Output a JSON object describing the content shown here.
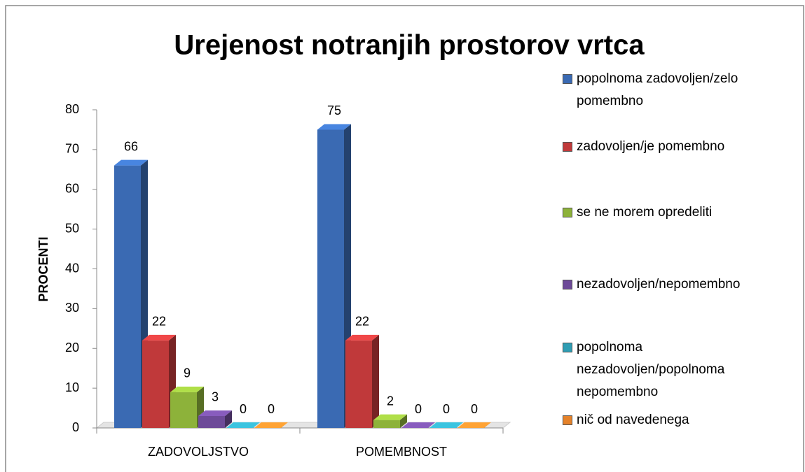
{
  "chart_data": {
    "type": "bar3d",
    "title": "Urejenost notranjih prostorov vrtca",
    "y_label": "PROCENTI",
    "categories": [
      "ZADOVOLJSTVO",
      "POMEMBNOST"
    ],
    "series": [
      {
        "name": "popolnoma zadovoljen/zelo pomembno",
        "color": "#3a6ab3",
        "values": [
          66,
          75
        ]
      },
      {
        "name": "zadovoljen/je pomembno",
        "color": "#c0393a",
        "values": [
          22,
          22
        ]
      },
      {
        "name": "se ne morem opredeliti",
        "color": "#8db23a",
        "values": [
          9,
          2
        ]
      },
      {
        "name": "nezadovoljen/nepomembno",
        "color": "#6d4a98",
        "values": [
          3,
          0
        ]
      },
      {
        "name": "popolnoma nezadovoljen/popolnoma nepomembno",
        "color": "#2f9db3",
        "values": [
          0,
          0
        ]
      },
      {
        "name": "nič od navedenega",
        "color": "#e5822a",
        "values": [
          0,
          0
        ]
      }
    ],
    "ylim": [
      0,
      80
    ],
    "yticks": [
      0,
      10,
      20,
      30,
      40,
      50,
      60,
      70,
      80
    ],
    "legend": "right"
  }
}
